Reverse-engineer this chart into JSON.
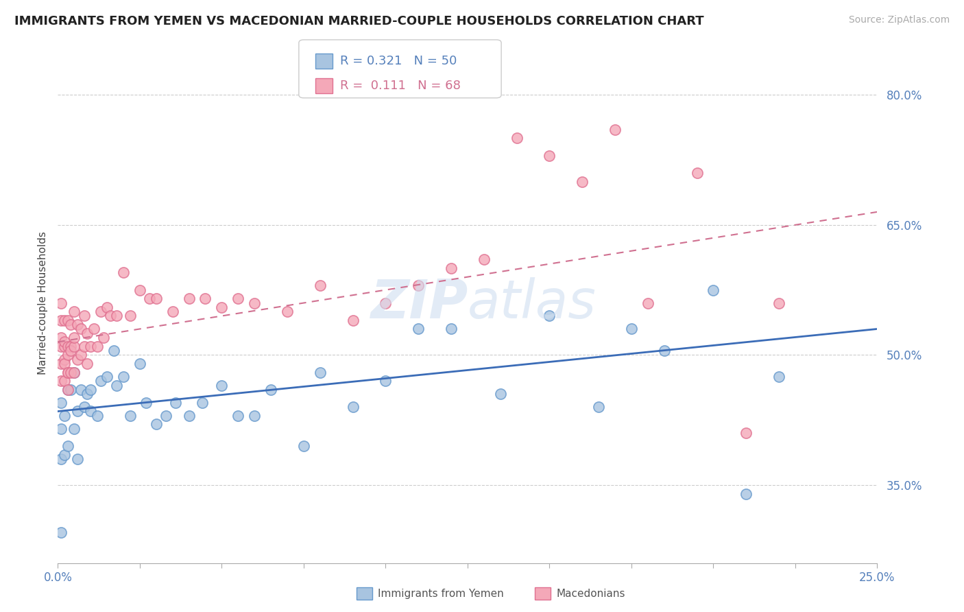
{
  "title": "IMMIGRANTS FROM YEMEN VS MACEDONIAN MARRIED-COUPLE HOUSEHOLDS CORRELATION CHART",
  "source": "Source: ZipAtlas.com",
  "ylabel": "Married-couple Households",
  "xlim": [
    0.0,
    0.25
  ],
  "ylim": [
    0.26,
    0.86
  ],
  "yticks": [
    0.35,
    0.5,
    0.65,
    0.8
  ],
  "ytick_labels": [
    "35.0%",
    "50.0%",
    "65.0%",
    "80.0%"
  ],
  "xtick_labels": [
    "0.0%",
    "25.0%"
  ],
  "blue_color": "#A8C4E0",
  "blue_edge": "#6699CC",
  "pink_color": "#F4A8B8",
  "pink_edge": "#E07090",
  "trend_blue": "#3B6CB7",
  "trend_pink": "#D07090",
  "watermark": "ZIPatlas",
  "legend_blue_r": "R = 0.321",
  "legend_blue_n": "N = 50",
  "legend_pink_r": "R =  0.111",
  "legend_pink_n": "N = 68",
  "blue_intercept": 0.435,
  "blue_slope": 0.38,
  "pink_intercept": 0.515,
  "pink_slope": 0.6,
  "blue_dots_x": [
    0.001,
    0.001,
    0.001,
    0.001,
    0.002,
    0.002,
    0.003,
    0.003,
    0.004,
    0.005,
    0.005,
    0.006,
    0.006,
    0.007,
    0.008,
    0.009,
    0.01,
    0.01,
    0.012,
    0.013,
    0.015,
    0.017,
    0.018,
    0.02,
    0.022,
    0.025,
    0.027,
    0.03,
    0.033,
    0.036,
    0.04,
    0.044,
    0.05,
    0.055,
    0.06,
    0.065,
    0.075,
    0.08,
    0.09,
    0.1,
    0.11,
    0.12,
    0.135,
    0.15,
    0.165,
    0.175,
    0.185,
    0.2,
    0.21,
    0.22
  ],
  "blue_dots_y": [
    0.445,
    0.415,
    0.38,
    0.295,
    0.43,
    0.385,
    0.46,
    0.395,
    0.46,
    0.48,
    0.415,
    0.435,
    0.38,
    0.46,
    0.44,
    0.455,
    0.46,
    0.435,
    0.43,
    0.47,
    0.475,
    0.505,
    0.465,
    0.475,
    0.43,
    0.49,
    0.445,
    0.42,
    0.43,
    0.445,
    0.43,
    0.445,
    0.465,
    0.43,
    0.43,
    0.46,
    0.395,
    0.48,
    0.44,
    0.47,
    0.53,
    0.53,
    0.455,
    0.545,
    0.44,
    0.53,
    0.505,
    0.575,
    0.34,
    0.475
  ],
  "pink_dots_x": [
    0.001,
    0.001,
    0.001,
    0.001,
    0.001,
    0.001,
    0.002,
    0.002,
    0.002,
    0.002,
    0.002,
    0.002,
    0.003,
    0.003,
    0.003,
    0.003,
    0.003,
    0.003,
    0.004,
    0.004,
    0.004,
    0.004,
    0.005,
    0.005,
    0.005,
    0.005,
    0.006,
    0.006,
    0.007,
    0.007,
    0.008,
    0.008,
    0.009,
    0.009,
    0.01,
    0.011,
    0.012,
    0.013,
    0.014,
    0.015,
    0.016,
    0.018,
    0.02,
    0.022,
    0.025,
    0.028,
    0.03,
    0.035,
    0.04,
    0.045,
    0.05,
    0.055,
    0.06,
    0.07,
    0.08,
    0.09,
    0.1,
    0.11,
    0.12,
    0.13,
    0.14,
    0.15,
    0.16,
    0.17,
    0.18,
    0.195,
    0.21,
    0.22
  ],
  "pink_dots_y": [
    0.52,
    0.54,
    0.56,
    0.49,
    0.51,
    0.47,
    0.51,
    0.54,
    0.495,
    0.515,
    0.47,
    0.49,
    0.51,
    0.54,
    0.48,
    0.5,
    0.46,
    0.48,
    0.51,
    0.48,
    0.535,
    0.505,
    0.51,
    0.48,
    0.52,
    0.55,
    0.495,
    0.535,
    0.5,
    0.53,
    0.51,
    0.545,
    0.49,
    0.525,
    0.51,
    0.53,
    0.51,
    0.55,
    0.52,
    0.555,
    0.545,
    0.545,
    0.595,
    0.545,
    0.575,
    0.565,
    0.565,
    0.55,
    0.565,
    0.565,
    0.555,
    0.565,
    0.56,
    0.55,
    0.58,
    0.54,
    0.56,
    0.58,
    0.6,
    0.61,
    0.75,
    0.73,
    0.7,
    0.76,
    0.56,
    0.71,
    0.41,
    0.56
  ]
}
